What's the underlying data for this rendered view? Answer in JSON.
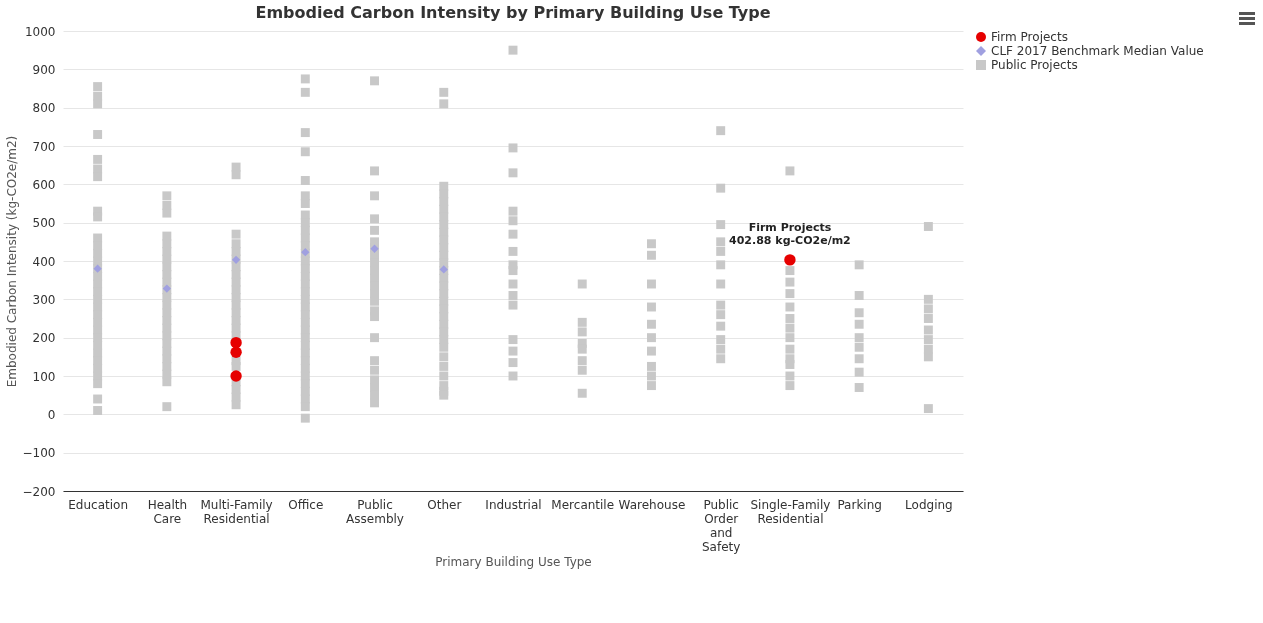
{
  "chart_data": {
    "type": "scatter",
    "title": "Embodied Carbon Intensity by Primary Building Use Type",
    "xlabel": "Primary Building Use Type",
    "ylabel": "Embodied Carbon Intensity (kg-CO2e/m2)",
    "categories": [
      "Education",
      "Health Care",
      "Multi-Family Residential",
      "Office",
      "Public Assembly",
      "Other",
      "Industrial",
      "Mercantile",
      "Warehouse",
      "Public Order and Safety",
      "Single-Family Residential",
      "Parking",
      "Lodging"
    ],
    "ylim": [
      -200,
      1000
    ],
    "yticks": [
      -200,
      -100,
      0,
      100,
      200,
      300,
      400,
      500,
      600,
      700,
      800,
      900,
      1000
    ],
    "grid": "y",
    "legend": "right",
    "annotations": [
      {
        "text": "Firm Projects\n402.88 kg-CO2e/m2",
        "x": "Single-Family Residential",
        "y": 402.88
      }
    ],
    "series": [
      {
        "name": "Firm Projects",
        "color": "#e60000",
        "marker": "circle",
        "x": [
          "Multi-Family Residential",
          "Multi-Family Residential",
          "Multi-Family Residential",
          "Single-Family Residential"
        ],
        "values": [
          187,
          162,
          100,
          402.88
        ]
      },
      {
        "name": "CLF 2017 Benchmark Median Value",
        "color": "#a0a0e0",
        "marker": "diamond",
        "x": [
          "Education",
          "Health Care",
          "Multi-Family Residential",
          "Office",
          "Public Assembly",
          "Other"
        ],
        "values": [
          380,
          328,
          403,
          423,
          432,
          378
        ]
      },
      {
        "name": "Public Projects",
        "color": "#c8c8c8",
        "marker": "square",
        "x": [
          "Education",
          "Education",
          "Education",
          "Education",
          "Education",
          "Education",
          "Education",
          "Education",
          "Education",
          "Education",
          "Education",
          "Education",
          "Education",
          "Education",
          "Education",
          "Education",
          "Education",
          "Education",
          "Education",
          "Education",
          "Education",
          "Education",
          "Education",
          "Education",
          "Education",
          "Education",
          "Education",
          "Education",
          "Education",
          "Education",
          "Education",
          "Health Care",
          "Health Care",
          "Health Care",
          "Health Care",
          "Health Care",
          "Health Care",
          "Health Care",
          "Health Care",
          "Health Care",
          "Health Care",
          "Health Care",
          "Health Care",
          "Health Care",
          "Health Care",
          "Health Care",
          "Health Care",
          "Health Care",
          "Health Care",
          "Health Care",
          "Health Care",
          "Health Care",
          "Health Care",
          "Health Care",
          "Health Care",
          "Multi-Family Residential",
          "Multi-Family Residential",
          "Multi-Family Residential",
          "Multi-Family Residential",
          "Multi-Family Residential",
          "Multi-Family Residential",
          "Multi-Family Residential",
          "Multi-Family Residential",
          "Multi-Family Residential",
          "Multi-Family Residential",
          "Multi-Family Residential",
          "Multi-Family Residential",
          "Multi-Family Residential",
          "Multi-Family Residential",
          "Multi-Family Residential",
          "Multi-Family Residential",
          "Multi-Family Residential",
          "Multi-Family Residential",
          "Multi-Family Residential",
          "Multi-Family Residential",
          "Multi-Family Residential",
          "Multi-Family Residential",
          "Office",
          "Office",
          "Office",
          "Office",
          "Office",
          "Office",
          "Office",
          "Office",
          "Office",
          "Office",
          "Office",
          "Office",
          "Office",
          "Office",
          "Office",
          "Office",
          "Office",
          "Office",
          "Office",
          "Office",
          "Office",
          "Office",
          "Office",
          "Office",
          "Office",
          "Office",
          "Office",
          "Office",
          "Office",
          "Office",
          "Office",
          "Office",
          "Office",
          "Office",
          "Public Assembly",
          "Public Assembly",
          "Public Assembly",
          "Public Assembly",
          "Public Assembly",
          "Public Assembly",
          "Public Assembly",
          "Public Assembly",
          "Public Assembly",
          "Public Assembly",
          "Public Assembly",
          "Public Assembly",
          "Public Assembly",
          "Public Assembly",
          "Public Assembly",
          "Public Assembly",
          "Public Assembly",
          "Public Assembly",
          "Public Assembly",
          "Public Assembly",
          "Public Assembly",
          "Public Assembly",
          "Public Assembly",
          "Other",
          "Other",
          "Other",
          "Other",
          "Other",
          "Other",
          "Other",
          "Other",
          "Other",
          "Other",
          "Other",
          "Other",
          "Other",
          "Other",
          "Other",
          "Other",
          "Other",
          "Other",
          "Other",
          "Other",
          "Other",
          "Other",
          "Other",
          "Other",
          "Other",
          "Other",
          "Other",
          "Other",
          "Other",
          "Other",
          "Industrial",
          "Industrial",
          "Industrial",
          "Industrial",
          "Industrial",
          "Industrial",
          "Industrial",
          "Industrial",
          "Industrial",
          "Industrial",
          "Industrial",
          "Industrial",
          "Industrial",
          "Industrial",
          "Industrial",
          "Industrial",
          "Mercantile",
          "Mercantile",
          "Mercantile",
          "Mercantile",
          "Mercantile",
          "Mercantile",
          "Mercantile",
          "Mercantile",
          "Warehouse",
          "Warehouse",
          "Warehouse",
          "Warehouse",
          "Warehouse",
          "Warehouse",
          "Warehouse",
          "Warehouse",
          "Warehouse",
          "Warehouse",
          "Public Order and Safety",
          "Public Order and Safety",
          "Public Order and Safety",
          "Public Order and Safety",
          "Public Order and Safety",
          "Public Order and Safety",
          "Public Order and Safety",
          "Public Order and Safety",
          "Public Order and Safety",
          "Public Order and Safety",
          "Public Order and Safety",
          "Public Order and Safety",
          "Public Order and Safety",
          "Single-Family Residential",
          "Single-Family Residential",
          "Single-Family Residential",
          "Single-Family Residential",
          "Single-Family Residential",
          "Single-Family Residential",
          "Single-Family Residential",
          "Single-Family Residential",
          "Single-Family Residential",
          "Single-Family Residential",
          "Single-Family Residential",
          "Single-Family Residential",
          "Single-Family Residential",
          "Parking",
          "Parking",
          "Parking",
          "Parking",
          "Parking",
          "Parking",
          "Parking",
          "Parking",
          "Parking",
          "Lodging",
          "Lodging",
          "Lodging",
          "Lodging",
          "Lodging",
          "Lodging",
          "Lodging",
          "Lodging",
          "Lodging"
        ],
        "values": [
          855,
          830,
          810,
          730,
          665,
          640,
          620,
          530,
          515,
          460,
          440,
          420,
          400,
          380,
          360,
          340,
          320,
          300,
          280,
          260,
          240,
          220,
          200,
          180,
          160,
          140,
          120,
          100,
          80,
          40,
          10,
          570,
          545,
          525,
          465,
          445,
          425,
          405,
          385,
          365,
          345,
          325,
          305,
          285,
          265,
          245,
          225,
          205,
          185,
          165,
          145,
          125,
          105,
          85,
          20,
          645,
          625,
          470,
          445,
          425,
          405,
          385,
          365,
          345,
          325,
          305,
          285,
          265,
          245,
          225,
          205,
          140,
          125,
          85,
          65,
          45,
          25,
          875,
          840,
          735,
          685,
          610,
          570,
          550,
          520,
          500,
          480,
          460,
          440,
          420,
          400,
          380,
          360,
          340,
          320,
          300,
          280,
          260,
          240,
          220,
          200,
          180,
          160,
          140,
          120,
          100,
          80,
          60,
          40,
          20,
          -10,
          870,
          635,
          570,
          510,
          480,
          450,
          435,
          415,
          395,
          375,
          355,
          335,
          315,
          295,
          270,
          255,
          200,
          140,
          115,
          90,
          70,
          50,
          30,
          840,
          810,
          595,
          575,
          555,
          535,
          515,
          495,
          475,
          455,
          435,
          415,
          395,
          375,
          355,
          335,
          315,
          295,
          275,
          255,
          235,
          215,
          195,
          175,
          150,
          125,
          100,
          75,
          60,
          50,
          950,
          695,
          630,
          530,
          505,
          470,
          425,
          390,
          375,
          340,
          310,
          285,
          195,
          165,
          135,
          100,
          340,
          240,
          215,
          185,
          170,
          140,
          115,
          55,
          445,
          415,
          340,
          280,
          235,
          200,
          165,
          125,
          100,
          75,
          740,
          590,
          495,
          450,
          425,
          390,
          340,
          285,
          260,
          230,
          195,
          170,
          145,
          635,
          375,
          345,
          315,
          280,
          225,
          200,
          170,
          145,
          130,
          100,
          75,
          250,
          390,
          310,
          265,
          235,
          200,
          175,
          145,
          110,
          70,
          490,
          300,
          275,
          250,
          220,
          195,
          170,
          150,
          15
        ]
      }
    ]
  }
}
